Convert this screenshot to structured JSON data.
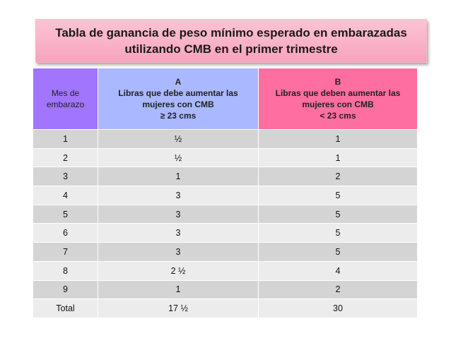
{
  "title": [
    "Tabla de ganancia de peso mínimo esperado en embarazadas",
    "utilizando CMB en el primer trimestre"
  ],
  "table": {
    "header": [
      [
        "Mes de",
        "embarazo"
      ],
      [
        "A",
        "Libras que debe aumentar las",
        "mujeres con CMB",
        "≥ 23 cms"
      ],
      [
        "B",
        "Libras que deben aumentar las",
        "mujeres con CMB",
        "< 23 cms"
      ]
    ],
    "rows": [
      [
        "1",
        "½",
        "1"
      ],
      [
        "2",
        "½",
        "1"
      ],
      [
        "3",
        "1",
        "2"
      ],
      [
        "4",
        "3",
        "5"
      ],
      [
        "5",
        "3",
        "5"
      ],
      [
        "6",
        "3",
        "5"
      ],
      [
        "7",
        "3",
        "5"
      ],
      [
        "8",
        "2 ½",
        "4"
      ],
      [
        "9",
        "1",
        "2"
      ],
      [
        "Total",
        "17 ½",
        "30"
      ]
    ]
  }
}
